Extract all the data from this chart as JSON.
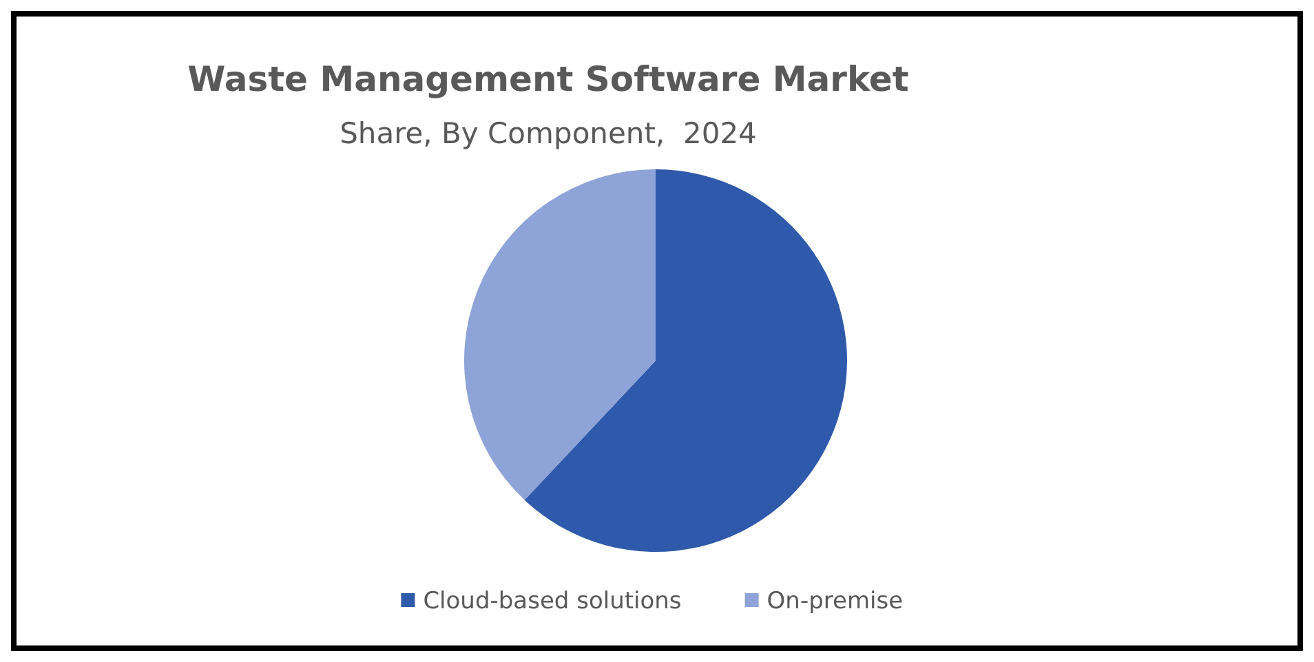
{
  "chart_data": {
    "type": "pie",
    "title": "Waste Management Software Market",
    "subtitle": "Share, By Component,  2024",
    "categories": [
      "Cloud-based solutions",
      "On-premise"
    ],
    "values": [
      62,
      38
    ],
    "colors": [
      "#2f5aab",
      "#8ea3d8"
    ],
    "legend": "bottom"
  }
}
